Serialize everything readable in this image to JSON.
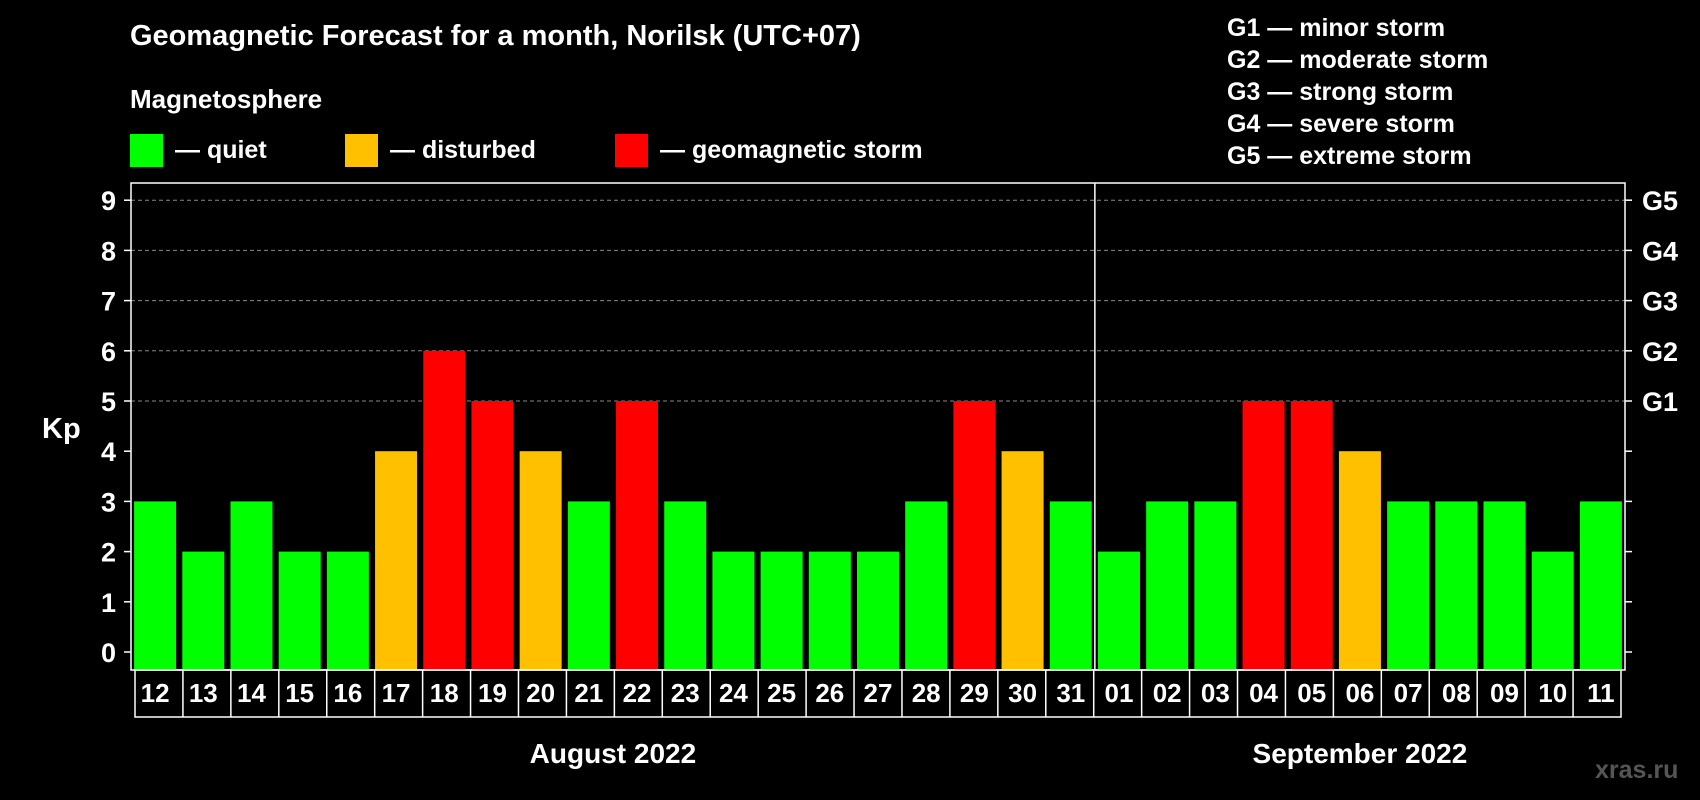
{
  "title": "Geomagnetic Forecast for a month, Norilsk (UTC+07)",
  "legend_heading": "Magnetosphere",
  "legend": [
    {
      "color": "#00ff00",
      "label": "— quiet"
    },
    {
      "color": "#ffc000",
      "label": "— disturbed"
    },
    {
      "color": "#ff0000",
      "label": "— geomagnetic storm"
    }
  ],
  "g_scale": [
    "G1 — minor storm",
    "G2 — moderate storm",
    "G3 — strong storm",
    "G4 — severe storm",
    "G5 — extreme storm"
  ],
  "watermark": "xras.ru",
  "chart_data": {
    "type": "bar",
    "ylabel": "Kp",
    "ylim": [
      0,
      9
    ],
    "yticks": [
      "0",
      "1",
      "2",
      "3",
      "4",
      "5",
      "6",
      "7",
      "8",
      "9"
    ],
    "right_axis_labels": [
      {
        "kp": 5,
        "label": "G1"
      },
      {
        "kp": 6,
        "label": "G2"
      },
      {
        "kp": 7,
        "label": "G3"
      },
      {
        "kp": 8,
        "label": "G4"
      },
      {
        "kp": 9,
        "label": "G5"
      }
    ],
    "grid": "dashed horizontal at Kp 5–9",
    "months": [
      {
        "label": "August 2022",
        "first_index": 0,
        "last_index": 19
      },
      {
        "label": "September 2022",
        "first_index": 20,
        "last_index": 30
      }
    ],
    "categories": [
      "12",
      "13",
      "14",
      "15",
      "16",
      "17",
      "18",
      "19",
      "20",
      "21",
      "22",
      "23",
      "24",
      "25",
      "26",
      "27",
      "28",
      "29",
      "30",
      "31",
      "01",
      "02",
      "03",
      "04",
      "05",
      "06",
      "07",
      "08",
      "09",
      "10",
      "11"
    ],
    "values": [
      3,
      2,
      3,
      2,
      2,
      4,
      6,
      5,
      4,
      3,
      5,
      3,
      2,
      2,
      2,
      2,
      3,
      5,
      4,
      3,
      2,
      3,
      3,
      5,
      5,
      4,
      3,
      3,
      3,
      2,
      3
    ],
    "status": [
      "quiet",
      "quiet",
      "quiet",
      "quiet",
      "quiet",
      "disturbed",
      "storm",
      "storm",
      "disturbed",
      "quiet",
      "storm",
      "quiet",
      "quiet",
      "quiet",
      "quiet",
      "quiet",
      "quiet",
      "storm",
      "disturbed",
      "quiet",
      "quiet",
      "quiet",
      "quiet",
      "storm",
      "storm",
      "disturbed",
      "quiet",
      "quiet",
      "quiet",
      "quiet",
      "quiet"
    ],
    "status_colors": {
      "quiet": "#00ff00",
      "disturbed": "#ffc000",
      "storm": "#ff0000"
    }
  }
}
